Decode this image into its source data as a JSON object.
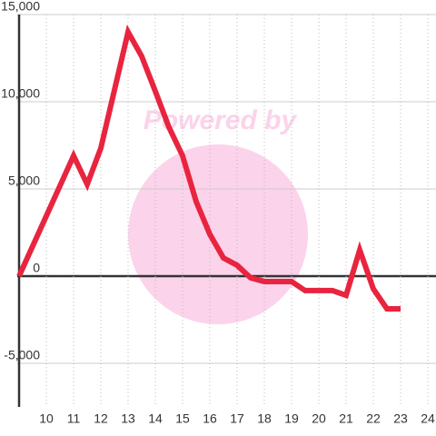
{
  "chart_data": {
    "type": "line",
    "watermark": "Powered by",
    "x": [
      9,
      10,
      11,
      11.5,
      12,
      13,
      13.5,
      14,
      14.5,
      15,
      15.5,
      16,
      16.5,
      17,
      17.5,
      18,
      18.5,
      19,
      19.5,
      20,
      20.5,
      21,
      21.5,
      22,
      22.5,
      23
    ],
    "series": [
      {
        "color": "#e8243f",
        "values": [
          0,
          3450,
          6900,
          5260,
          7340,
          14000,
          12600,
          10600,
          8540,
          6900,
          4270,
          2400,
          1040,
          625,
          -100,
          -310,
          -310,
          -310,
          -830,
          -830,
          -830,
          -1100,
          1500,
          -730,
          -1875,
          -1875
        ]
      }
    ],
    "xlim": [
      9,
      24.3
    ],
    "xticks": [
      10,
      11,
      12,
      13,
      14,
      15,
      16,
      17,
      18,
      19,
      20,
      21,
      22,
      23,
      24
    ],
    "ylim": [
      -7500,
      15000
    ],
    "yticks": [
      {
        "value": -5000,
        "label": "-5,000"
      },
      0,
      {
        "value": 5000,
        "label": "5,000"
      },
      {
        "value": 10000,
        "label": "10,000"
      },
      {
        "value": 15000,
        "label": "15,000"
      }
    ],
    "grid": true
  }
}
